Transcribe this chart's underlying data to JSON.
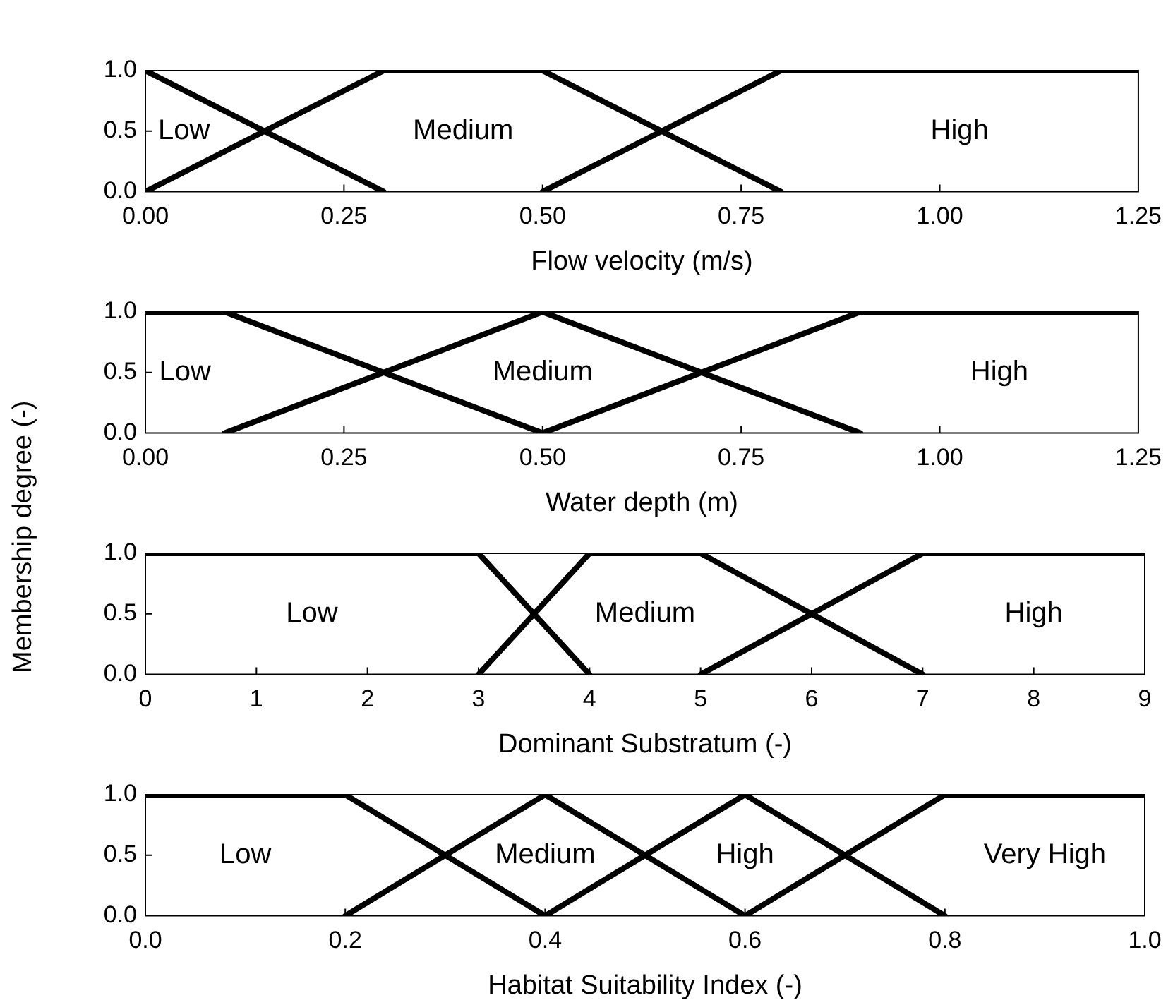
{
  "chart_data": [
    {
      "type": "line",
      "xlabel": "Flow velocity (m/s)",
      "xlim": [
        0,
        1.25
      ],
      "ylim": [
        0,
        1
      ],
      "grid": false,
      "marker": "none",
      "line_style": "solid",
      "xticks": [
        {
          "value": 0,
          "label": "0.00"
        },
        {
          "value": 0.25,
          "label": "0.25"
        },
        {
          "value": 0.5,
          "label": "0.50"
        },
        {
          "value": 0.75,
          "label": "0.75"
        },
        {
          "value": 1,
          "label": "1.00"
        },
        {
          "value": 1.25,
          "label": "1.25"
        }
      ],
      "yticks": [
        {
          "value": 0,
          "label": "0.0"
        },
        {
          "value": 0.5,
          "label": "0.5"
        },
        {
          "value": 1,
          "label": "1.0"
        }
      ],
      "series": [
        {
          "name": "Low",
          "color": "#000000",
          "x": [
            0,
            0.3
          ],
          "values": [
            1,
            0
          ]
        },
        {
          "name": "Medium",
          "color": "#000000",
          "x": [
            0,
            0.3,
            0.5,
            0.8
          ],
          "values": [
            0,
            1,
            1,
            0
          ]
        },
        {
          "name": "High",
          "color": "#000000",
          "x": [
            0.5,
            0.8,
            1.25
          ],
          "values": [
            0,
            1,
            1
          ]
        }
      ]
    },
    {
      "type": "line",
      "xlabel": "Water depth (m)",
      "ylabel": "Membership degree (-)",
      "xlim": [
        0,
        1.25
      ],
      "ylim": [
        0,
        1
      ],
      "grid": false,
      "marker": "none",
      "line_style": "solid",
      "xticks": [
        {
          "value": 0,
          "label": "0.00"
        },
        {
          "value": 0.25,
          "label": "0.25"
        },
        {
          "value": 0.5,
          "label": "0.50"
        },
        {
          "value": 0.75,
          "label": "0.75"
        },
        {
          "value": 1,
          "label": "1.00"
        },
        {
          "value": 1.25,
          "label": "1.25"
        }
      ],
      "yticks": [
        {
          "value": 0,
          "label": "0.0"
        },
        {
          "value": 0.5,
          "label": "0.5"
        },
        {
          "value": 1,
          "label": "1.0"
        }
      ],
      "series": [
        {
          "name": "Low",
          "color": "#000000",
          "x": [
            0,
            0.1,
            0.5
          ],
          "values": [
            1,
            1,
            0
          ]
        },
        {
          "name": "Medium",
          "color": "#000000",
          "x": [
            0.1,
            0.5,
            0.9
          ],
          "values": [
            0,
            1,
            0
          ]
        },
        {
          "name": "High",
          "color": "#000000",
          "x": [
            0.5,
            0.9,
            1.25
          ],
          "values": [
            0,
            1,
            1
          ]
        }
      ]
    },
    {
      "type": "line",
      "xlabel": "Dominant Substratum (-)",
      "xlim": [
        0,
        9
      ],
      "ylim": [
        0,
        1
      ],
      "grid": false,
      "marker": "none",
      "line_style": "solid",
      "xticks": [
        0,
        1,
        2,
        3,
        4,
        5,
        6,
        7,
        8,
        9
      ],
      "yticks": [
        {
          "value": 0,
          "label": "0.0"
        },
        {
          "value": 0.5,
          "label": "0.5"
        },
        {
          "value": 1,
          "label": "1.0"
        }
      ],
      "series": [
        {
          "name": "Low",
          "color": "#000000",
          "x": [
            0,
            3,
            4
          ],
          "values": [
            1,
            1,
            0
          ]
        },
        {
          "name": "Medium",
          "color": "#000000",
          "x": [
            3,
            4,
            5,
            7
          ],
          "values": [
            0,
            1,
            1,
            0
          ]
        },
        {
          "name": "High",
          "color": "#000000",
          "x": [
            5,
            7,
            9
          ],
          "values": [
            0,
            1,
            1
          ]
        }
      ]
    },
    {
      "type": "line",
      "xlabel": "Habitat Suitability Index (-)",
      "xlim": [
        0,
        1
      ],
      "ylim": [
        0,
        1
      ],
      "grid": false,
      "marker": "none",
      "line_style": "solid",
      "xticks": [
        {
          "value": 0,
          "label": "0.0"
        },
        {
          "value": 0.2,
          "label": "0.2"
        },
        {
          "value": 0.4,
          "label": "0.4"
        },
        {
          "value": 0.6,
          "label": "0.6"
        },
        {
          "value": 0.8,
          "label": "0.8"
        },
        {
          "value": 1,
          "label": "1.0"
        }
      ],
      "yticks": [
        {
          "value": 0,
          "label": "0.0"
        },
        {
          "value": 0.5,
          "label": "0.5"
        },
        {
          "value": 1,
          "label": "1.0"
        }
      ],
      "series": [
        {
          "name": "Low",
          "color": "#000000",
          "x": [
            0,
            0.2,
            0.4
          ],
          "values": [
            1,
            1,
            0
          ]
        },
        {
          "name": "Medium",
          "color": "#000000",
          "x": [
            0.2,
            0.4,
            0.6
          ],
          "values": [
            0,
            1,
            0
          ]
        },
        {
          "name": "High",
          "color": "#000000",
          "x": [
            0.4,
            0.6,
            0.8
          ],
          "values": [
            0,
            1,
            0
          ]
        },
        {
          "name": "Very High",
          "color": "#000000",
          "x": [
            0.6,
            0.8,
            1
          ],
          "values": [
            0,
            1,
            1
          ]
        }
      ]
    }
  ]
}
